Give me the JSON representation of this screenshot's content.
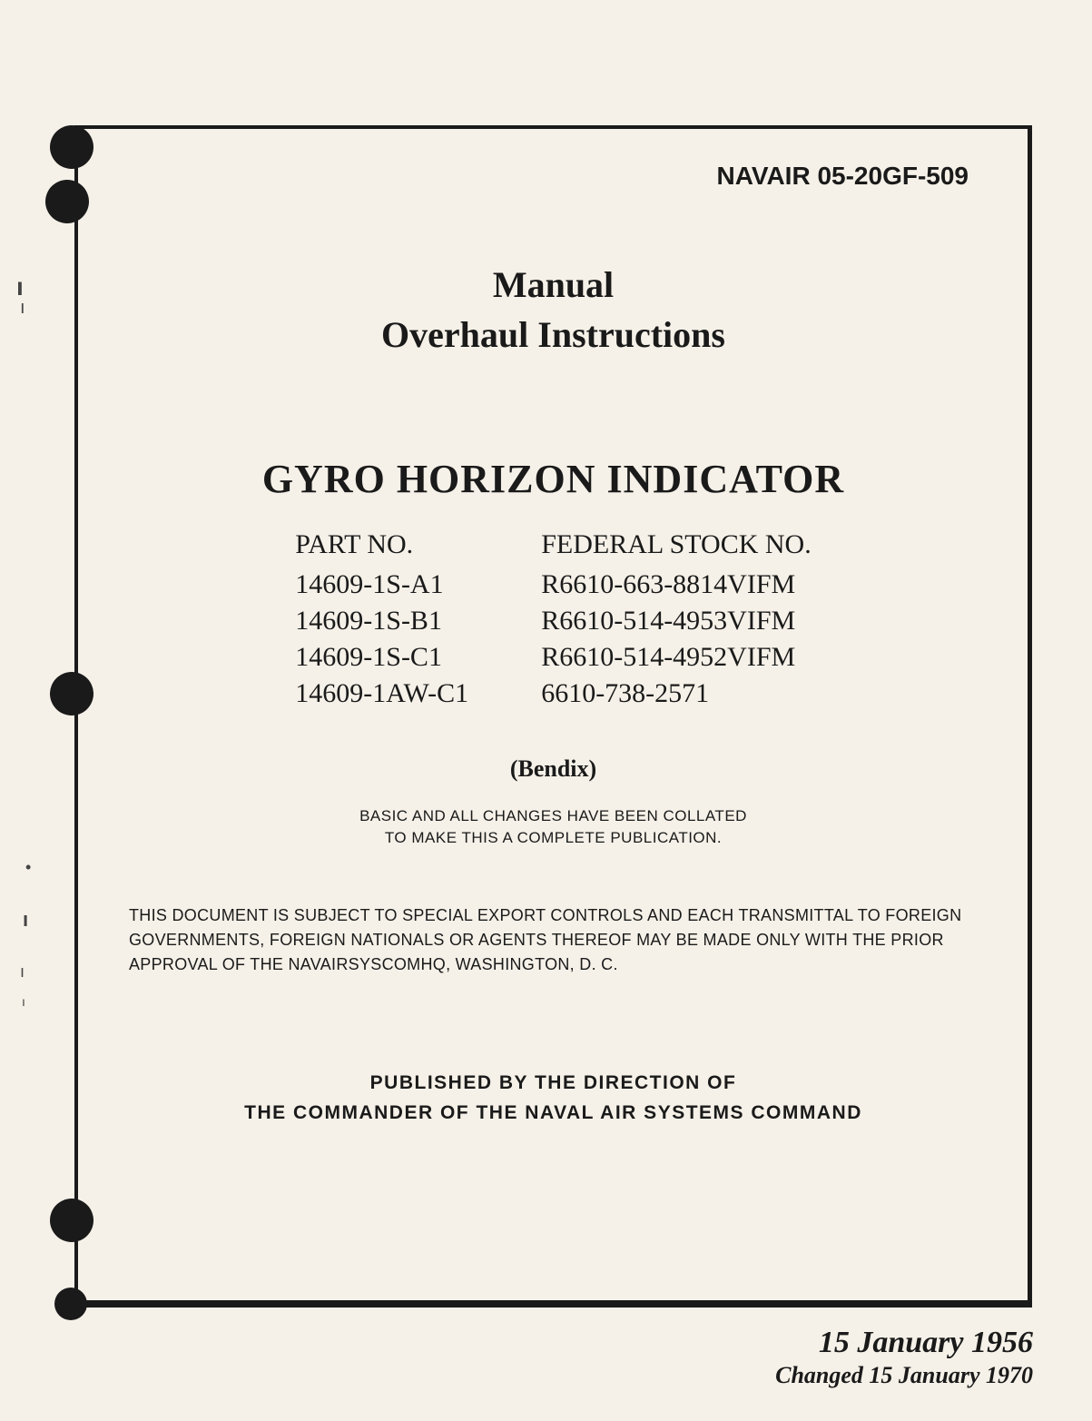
{
  "document": {
    "number": "NAVAIR 05-20GF-509",
    "title_line1": "Manual",
    "title_line2": "Overhaul Instructions",
    "subject": "GYRO HORIZON INDICATOR",
    "manufacturer": "(Bendix)",
    "collation_line1": "BASIC AND ALL CHANGES HAVE BEEN COLLATED",
    "collation_line2": "TO MAKE THIS A COMPLETE PUBLICATION.",
    "export_notice": "THIS DOCUMENT IS SUBJECT TO SPECIAL EXPORT CONTROLS AND EACH TRANSMITTAL TO FOREIGN GOVERNMENTS, FOREIGN NATIONALS OR AGENTS THEREOF MAY BE MADE ONLY WITH THE PRIOR APPROVAL OF THE NAVAIRSYSCOMHQ, WASHINGTON, D. C.",
    "publisher_line1": "PUBLISHED BY THE DIRECTION OF",
    "publisher_line2": "THE COMMANDER OF THE NAVAL AIR SYSTEMS COMMAND",
    "date_original": "15 January 1956",
    "date_changed": "Changed 15 January 1970"
  },
  "parts": {
    "part_header": "PART NO.",
    "stock_header": "FEDERAL STOCK NO.",
    "rows": [
      {
        "part": "14609-1S-A1",
        "stock": "R6610-663-8814VIFM"
      },
      {
        "part": "14609-1S-B1",
        "stock": "R6610-514-4953VIFM"
      },
      {
        "part": "14609-1S-C1",
        "stock": "R6610-514-4952VIFM"
      },
      {
        "part": "14609-1AW-C1",
        "stock": "6610-738-2571"
      }
    ]
  },
  "colors": {
    "page_bg": "#f5f1e8",
    "text": "#1a1a1a",
    "border": "#1a1a1a"
  }
}
